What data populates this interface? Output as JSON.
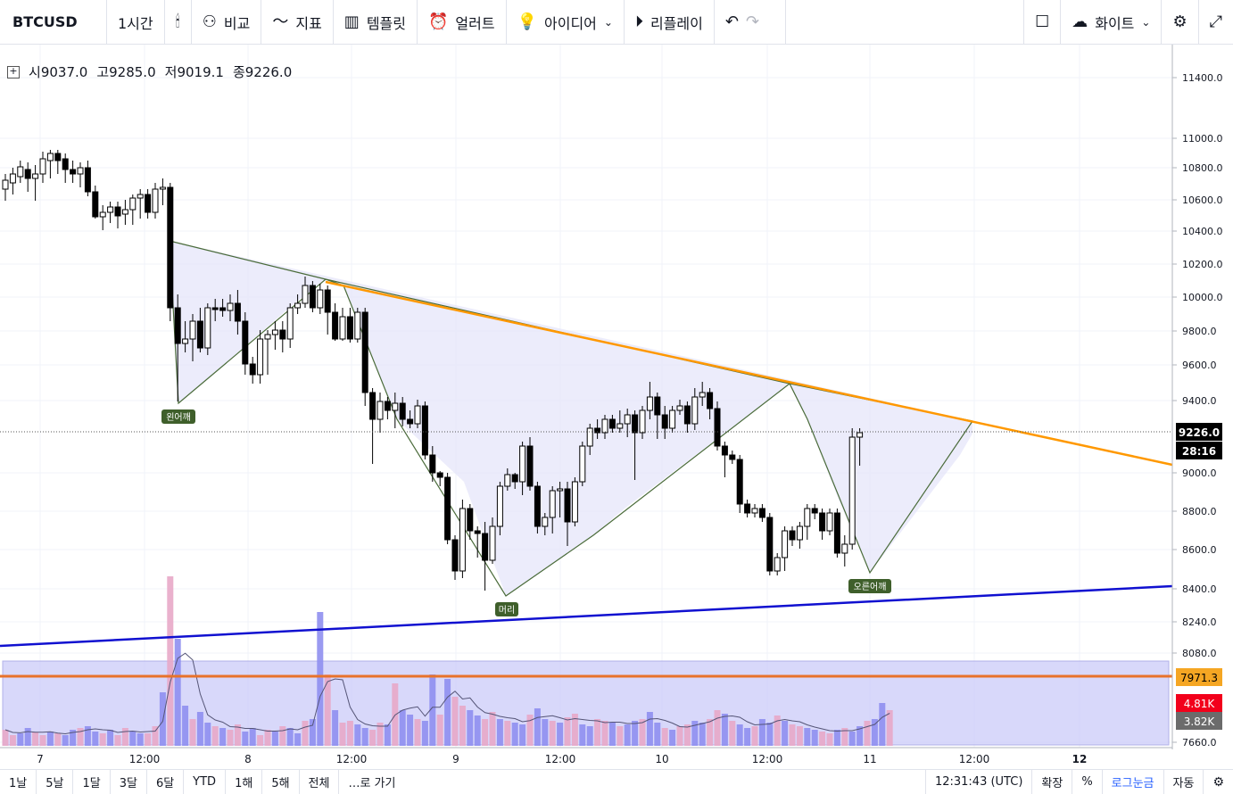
{
  "toolbar": {
    "symbol": "BTCUSD",
    "interval": "1시간",
    "compare": "비교",
    "indicators": "지표",
    "templates": "템플릿",
    "alert": "얼러트",
    "ideas": "아이디어",
    "replay": "리플레이",
    "theme": "화이트",
    "icons": [
      "candles-icon",
      "compare-icon",
      "indicator-icon",
      "template-icon",
      "alert-icon",
      "idea-icon",
      "replay-icon",
      "undo-icon",
      "redo-icon",
      "fullscreen-box-icon",
      "cloud-icon",
      "gear-icon",
      "expand-icon"
    ]
  },
  "ohlc": {
    "open_label": "시",
    "open": "9037.0",
    "high_label": "고",
    "high": "9285.0",
    "low_label": "저",
    "low": "9019.1",
    "close_label": "종",
    "close": "9226.0"
  },
  "price_axis": {
    "ticks": [
      "11400.0",
      "11000.0",
      "10800.0",
      "10600.0",
      "10400.0",
      "10200.0",
      "10000.0",
      "9800.0",
      "9600.0",
      "9400.0",
      "9000.0",
      "8800.0",
      "8600.0",
      "8400.0",
      "8240.0",
      "8080.0",
      "7660.0"
    ],
    "last_price": "9226.0",
    "countdown": "28:16",
    "orange_label": "7971.3",
    "vol_red": "4.81K",
    "vol_gray": "3.82K"
  },
  "time_axis": {
    "ticks": [
      "7",
      "12:00",
      "8",
      "12:00",
      "9",
      "12:00",
      "10",
      "12:00",
      "11",
      "12:00",
      "12"
    ]
  },
  "pattern_labels": {
    "left_shoulder": "왼어깨",
    "head": "머리",
    "right_shoulder": "오른어깨"
  },
  "colors": {
    "up": "#ffffff",
    "down": "#000000",
    "wick": "#000000",
    "trend_orange": "#ff9800",
    "support_blue": "#1010d0",
    "pattern_fill": "#e6e6fa",
    "pattern_line": "#4a6b3a",
    "label_bg": "#3f5f2b",
    "vol_blue": "#8f8ff0",
    "vol_pink": "#e8a8c8"
  },
  "bottom_bar": {
    "ranges": [
      "1날",
      "5날",
      "1달",
      "3달",
      "6달",
      "YTD",
      "1해",
      "5해",
      "전체"
    ],
    "goto": "…로 가기",
    "clock": "12:31:43 (UTC)",
    "extend": "확장",
    "percent": "%",
    "log": "로그눈금",
    "auto": "자동"
  }
}
